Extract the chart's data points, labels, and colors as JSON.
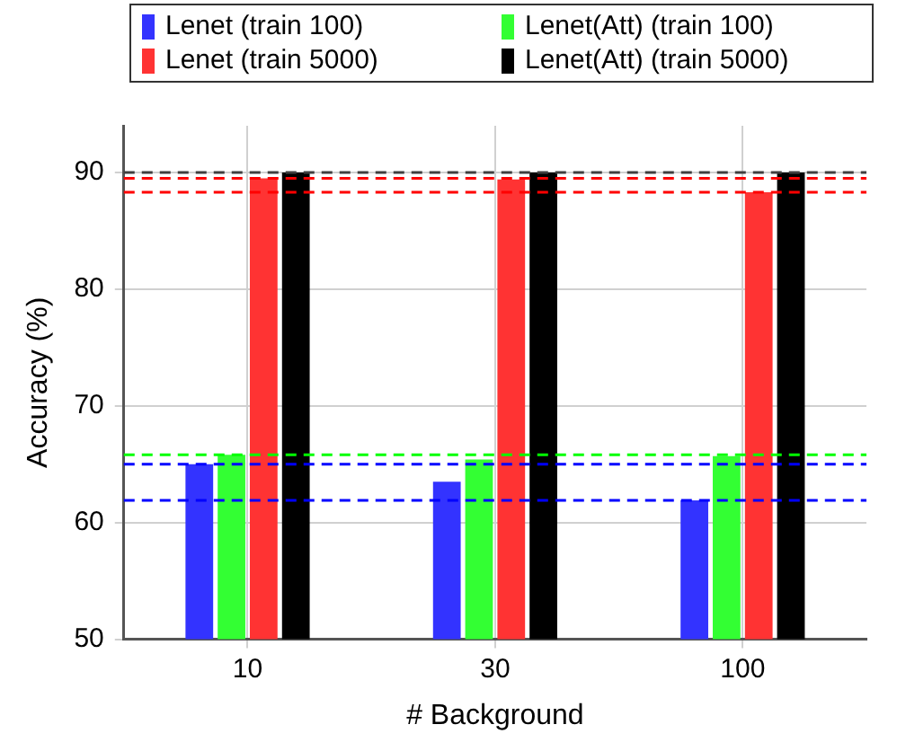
{
  "chart_data": {
    "type": "bar",
    "xlabel": "# Background",
    "ylabel": "Accuracy (%)",
    "categories": [
      "10",
      "30",
      "100"
    ],
    "series": [
      {
        "name": "Lenet (train 100)",
        "color": "#3333ff",
        "values": [
          65.0,
          63.5,
          61.9
        ]
      },
      {
        "name": "Lenet(Att) (train 100)",
        "color": "#33ff33",
        "values": [
          65.8,
          65.4,
          65.7
        ]
      },
      {
        "name": "Lenet (train 5000)",
        "color": "#ff3333",
        "values": [
          89.5,
          89.4,
          88.3
        ]
      },
      {
        "name": "Lenet(Att) (train 5000)",
        "color": "#000000",
        "values": [
          90.0,
          90.0,
          90.0
        ]
      }
    ],
    "ylim": [
      50,
      94
    ],
    "yticks": [
      50,
      60,
      70,
      80,
      90
    ],
    "grid": true,
    "legend": "top",
    "ref_lines": [
      {
        "axis": "y",
        "value": 65.0,
        "color": "#0000ff",
        "line_style": "dashed"
      },
      {
        "axis": "y",
        "value": 61.9,
        "color": "#0000ff",
        "line_style": "dashed"
      },
      {
        "axis": "y",
        "value": 65.8,
        "color": "#00ff00",
        "line_style": "dashed"
      },
      {
        "axis": "y",
        "value": 89.5,
        "color": "#ff0000",
        "line_style": "dashed"
      },
      {
        "axis": "y",
        "value": 88.3,
        "color": "#ff0000",
        "line_style": "dashed"
      },
      {
        "axis": "y",
        "value": 90.0,
        "color": "#404040",
        "line_style": "dashed"
      }
    ]
  }
}
